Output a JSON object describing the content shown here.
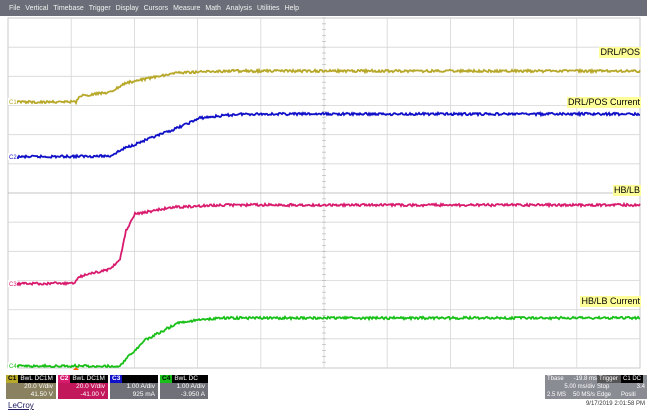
{
  "menu": [
    "File",
    "Vertical",
    "Timebase",
    "Trigger",
    "Display",
    "Cursors",
    "Measure",
    "Math",
    "Analysis",
    "Utilities",
    "Help"
  ],
  "labels": {
    "c1": "DRL/POS",
    "c2": "DRL/POS Current",
    "c3": "HB/LB",
    "c4": "HB/LB Current"
  },
  "channels": [
    {
      "tag": "C1",
      "name": "BwL DC1M",
      "scale": "20.0 V/div",
      "offset": "41.50 V",
      "color": "#b8a82a"
    },
    {
      "tag": "C2",
      "name": "BwL DC1M",
      "scale": "20.0 V/div",
      "offset": "-41.00 V",
      "color": "#d81b6e"
    },
    {
      "tag": "C3",
      "name": "",
      "scale": "1.00 A/div",
      "offset": "925 mA",
      "color": "#1010c8"
    },
    {
      "tag": "C4",
      "name": "BwL DC",
      "scale": "1.00 A/div",
      "offset": "-3.950 A",
      "color": "#18c018"
    }
  ],
  "timebase": {
    "label": "Tbase",
    "delay": "-19.8 ms",
    "per_div": "5.00 ms/div",
    "samples": "2.5 MS",
    "rate": "50 MS/s",
    "trigger_label": "Trigger",
    "trigger_ch": "C1 DC",
    "mode": "Stop",
    "level": "3.4",
    "type": "Edge",
    "slope": "Positi"
  },
  "brand": "LeCroy",
  "datetime": "9/17/2019 2:01:58 PM",
  "colors": {
    "c1": "#b8a82a",
    "c2": "#1010c8",
    "c3": "#d81b6e",
    "c4": "#18c018",
    "grid": "#c8c8c8",
    "menubar": "#6b6e78"
  }
}
